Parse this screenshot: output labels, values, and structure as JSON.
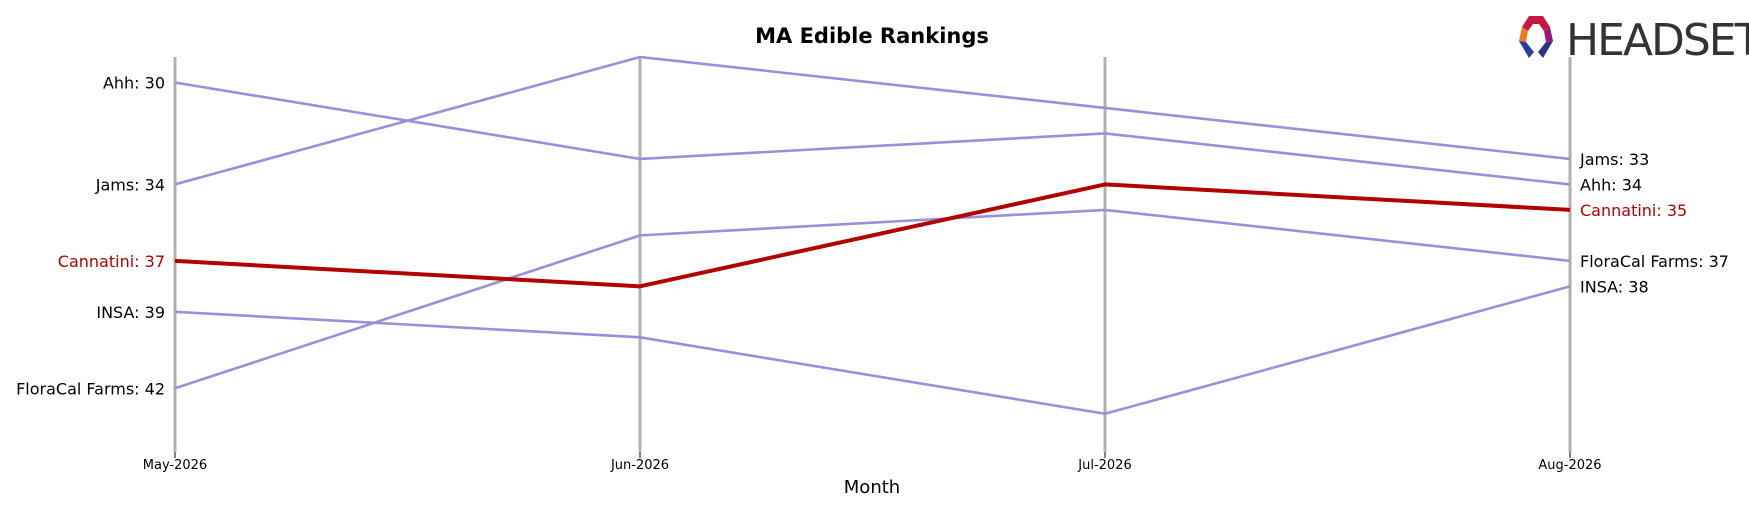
{
  "brand": {
    "name": "HEADSET"
  },
  "chart_data": {
    "type": "line",
    "title": "MA Edible Rankings",
    "xlabel": "Month",
    "ylabel": "",
    "categories": [
      "May-2026",
      "Jun-2026",
      "Jul-2026",
      "Aug-2026"
    ],
    "y_inverted": true,
    "ylim": [
      44.5,
      29
    ],
    "grid": false,
    "highlight_color": "#b30000",
    "default_color": "#9b8fd9",
    "vline_color": "#b0b0b0",
    "series": [
      {
        "name": "Ahh",
        "values": [
          30,
          33,
          32,
          34
        ],
        "highlight": false,
        "start_label": "Ahh: 30",
        "end_label": "Ahh: 34"
      },
      {
        "name": "Jams",
        "values": [
          34,
          29,
          31,
          33
        ],
        "highlight": false,
        "start_label": "Jams: 34",
        "end_label": "Jams: 33"
      },
      {
        "name": "Cannatini",
        "values": [
          37,
          38,
          34,
          35
        ],
        "highlight": true,
        "start_label": "Cannatini: 37",
        "end_label": "Cannatini: 35"
      },
      {
        "name": "INSA",
        "values": [
          39,
          40,
          43,
          38
        ],
        "highlight": false,
        "start_label": "INSA: 39",
        "end_label": "INSA: 38"
      },
      {
        "name": "FloraCal Farms",
        "values": [
          42,
          36,
          35,
          37
        ],
        "highlight": false,
        "start_label": "FloraCal Farms: 42",
        "end_label": "FloraCal Farms: 37"
      }
    ]
  }
}
